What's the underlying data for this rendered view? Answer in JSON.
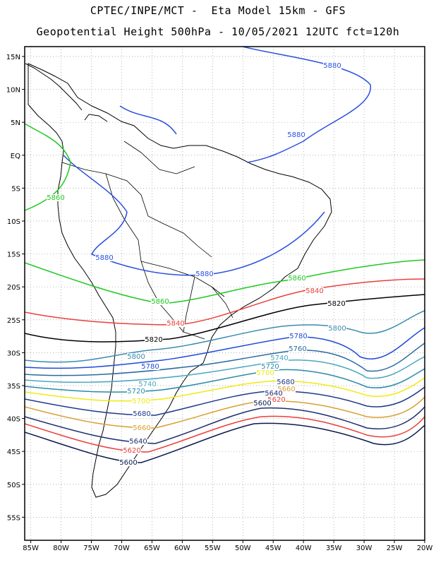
{
  "title": {
    "line1": "CPTEC/INPE/MCT -  Eta Model 15km - GFS",
    "line2": "Geopotential Height 500hPa - 10/05/2021 12UTC fct=120h"
  },
  "axes": {
    "lat_labels": [
      "15N",
      "10N",
      "5N",
      "EQ",
      "5S",
      "10S",
      "15S",
      "20S",
      "25S",
      "30S",
      "35S",
      "40S",
      "45S",
      "50S",
      "55S"
    ],
    "lon_labels": [
      "85W",
      "80W",
      "75W",
      "70W",
      "65W",
      "60W",
      "55W",
      "50W",
      "45W",
      "40W",
      "35W",
      "30W",
      "25W",
      "20W"
    ]
  },
  "map": {
    "lon_range": [
      -86,
      -20
    ],
    "lat_range": [
      -58.5,
      16.5
    ],
    "grid": "dotted"
  },
  "contours": [
    {
      "value": "5880",
      "color": "#2b4fe0",
      "label_text": "5880"
    },
    {
      "value": "5860",
      "color": "#20c820",
      "label_text": "5860"
    },
    {
      "value": "5840",
      "color": "#e8403a",
      "label_text": "5840"
    },
    {
      "value": "5820",
      "color": "#000000",
      "label_text": "5820"
    },
    {
      "value": "5800",
      "color": "#3a8bb0",
      "label_text": "5800"
    },
    {
      "value": "5780",
      "color": "#1f4bd8",
      "label_text": "5780"
    },
    {
      "value": "5760",
      "color": "#2a6aa0",
      "label_text": "5760"
    },
    {
      "value": "5740",
      "color": "#4ca7c0",
      "label_text": "5740"
    },
    {
      "value": "5720",
      "color": "#2a8aa8",
      "label_text": "5720"
    },
    {
      "value": "5700",
      "color": "#f2ea10",
      "label_text": "5700"
    },
    {
      "value": "5680",
      "color": "#1e3a8a",
      "label_text": "5680"
    },
    {
      "value": "5660",
      "color": "#d9a030",
      "label_text": "5660"
    },
    {
      "value": "5640",
      "color": "#1b2f6e",
      "label_text": "5640"
    },
    {
      "value": "5620",
      "color": "#e8403a",
      "label_text": "5620"
    },
    {
      "value": "5600",
      "color": "#0b1a4d",
      "label_text": "5600"
    }
  ]
}
